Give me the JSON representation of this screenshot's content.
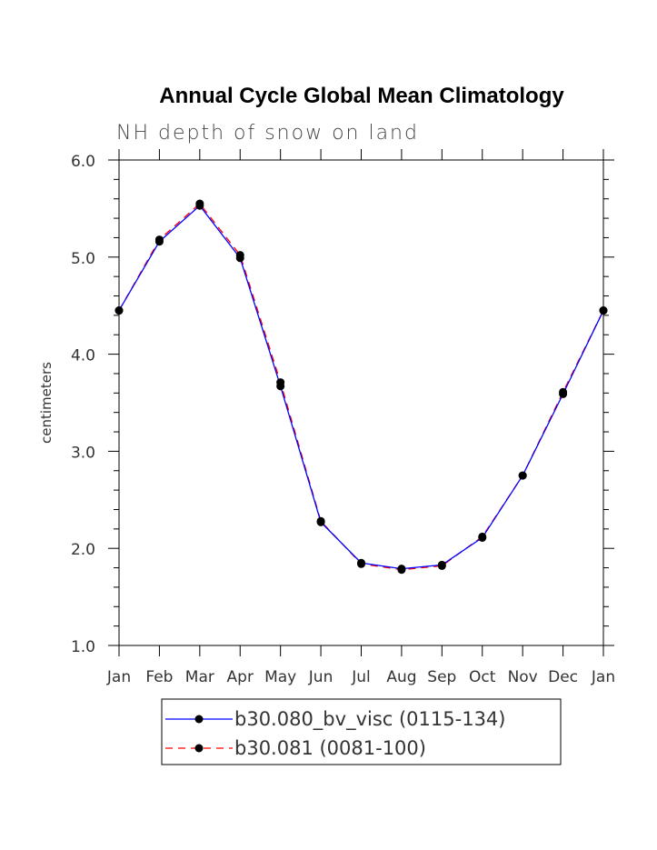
{
  "chart_data": {
    "type": "line",
    "title": "Annual Cycle Global Mean Climatology",
    "subtitle": "NH depth of snow on land",
    "xlabel": "",
    "ylabel": "centimeters",
    "categories": [
      "Jan",
      "Feb",
      "Mar",
      "Apr",
      "May",
      "Jun",
      "Jul",
      "Aug",
      "Sep",
      "Oct",
      "Nov",
      "Dec",
      "Jan"
    ],
    "ylim": [
      1.0,
      6.0
    ],
    "yticks": [
      "1.0",
      "2.0",
      "3.0",
      "4.0",
      "5.0",
      "6.0"
    ],
    "grid": false,
    "legend_position": "bottom",
    "series": [
      {
        "name": "b30.080_bv_visc (0115-134)",
        "color": "#0000ff",
        "dash": "solid",
        "values": [
          4.45,
          5.16,
          5.53,
          4.99,
          3.67,
          2.27,
          1.85,
          1.79,
          1.83,
          2.11,
          2.75,
          3.59,
          4.45
        ]
      },
      {
        "name": "b30.081 (0081-100)",
        "color": "#ff0000",
        "dash": "dashed",
        "values": [
          4.45,
          5.18,
          5.55,
          5.02,
          3.71,
          2.28,
          1.84,
          1.78,
          1.82,
          2.12,
          2.75,
          3.61,
          4.45
        ]
      }
    ]
  }
}
